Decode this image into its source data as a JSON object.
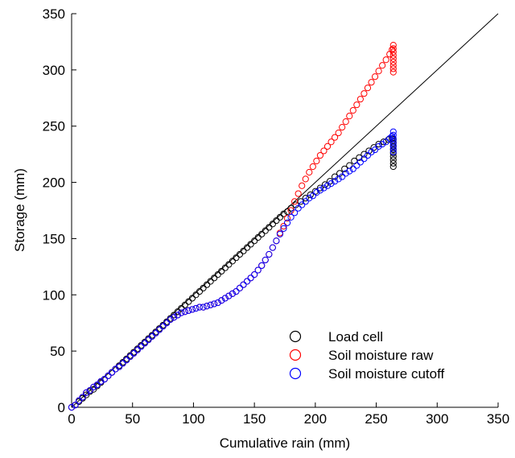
{
  "chart_data": {
    "type": "scatter",
    "xlabel": "Cumulative rain (mm)",
    "ylabel": "Storage (mm)",
    "xlim": [
      0,
      350
    ],
    "ylim": [
      0,
      350
    ],
    "xticks": [
      0,
      50,
      100,
      150,
      200,
      250,
      300,
      350
    ],
    "yticks": [
      0,
      50,
      100,
      150,
      200,
      250,
      300,
      350
    ],
    "grid": false,
    "legend_position": "bottom-right",
    "reference_line": {
      "x": [
        0,
        350
      ],
      "y": [
        0,
        350
      ],
      "color": "#000000"
    },
    "series": [
      {
        "name": "Load cell",
        "color": "#000000",
        "points": [
          [
            0,
            0
          ],
          [
            3,
            2
          ],
          [
            6,
            5
          ],
          [
            9,
            8
          ],
          [
            12,
            11
          ],
          [
            15,
            14
          ],
          [
            18,
            16
          ],
          [
            21,
            19
          ],
          [
            24,
            22
          ],
          [
            27,
            25
          ],
          [
            30,
            28
          ],
          [
            33,
            31
          ],
          [
            36,
            34
          ],
          [
            39,
            37
          ],
          [
            42,
            40
          ],
          [
            45,
            43
          ],
          [
            48,
            46
          ],
          [
            51,
            49
          ],
          [
            54,
            52
          ],
          [
            57,
            55
          ],
          [
            60,
            58
          ],
          [
            63,
            61
          ],
          [
            66,
            64
          ],
          [
            69,
            67
          ],
          [
            72,
            70
          ],
          [
            75,
            73
          ],
          [
            78,
            76
          ],
          [
            81,
            79
          ],
          [
            84,
            82
          ],
          [
            87,
            85
          ],
          [
            90,
            88
          ],
          [
            93,
            91
          ],
          [
            96,
            94
          ],
          [
            99,
            97
          ],
          [
            102,
            100
          ],
          [
            105,
            103
          ],
          [
            108,
            106
          ],
          [
            111,
            109
          ],
          [
            114,
            112
          ],
          [
            117,
            115
          ],
          [
            120,
            118
          ],
          [
            123,
            121
          ],
          [
            126,
            124
          ],
          [
            129,
            127
          ],
          [
            132,
            130
          ],
          [
            135,
            133
          ],
          [
            138,
            136
          ],
          [
            141,
            139
          ],
          [
            144,
            142
          ],
          [
            147,
            145
          ],
          [
            150,
            148
          ],
          [
            153,
            151
          ],
          [
            156,
            154
          ],
          [
            159,
            157
          ],
          [
            162,
            160
          ],
          [
            165,
            163
          ],
          [
            168,
            166
          ],
          [
            171,
            169
          ],
          [
            174,
            172
          ],
          [
            177,
            174
          ],
          [
            180,
            177
          ],
          [
            184,
            180
          ],
          [
            188,
            183
          ],
          [
            192,
            186
          ],
          [
            196,
            189
          ],
          [
            200,
            192
          ],
          [
            204,
            195
          ],
          [
            208,
            198
          ],
          [
            212,
            201
          ],
          [
            216,
            205
          ],
          [
            220,
            208
          ],
          [
            224,
            212
          ],
          [
            228,
            215
          ],
          [
            232,
            219
          ],
          [
            236,
            222
          ],
          [
            240,
            225
          ],
          [
            244,
            228
          ],
          [
            248,
            231
          ],
          [
            252,
            234
          ],
          [
            256,
            236
          ],
          [
            260,
            238
          ],
          [
            263,
            239
          ],
          [
            264,
            238
          ],
          [
            264,
            235
          ],
          [
            264,
            232
          ],
          [
            264,
            229
          ],
          [
            264,
            226
          ],
          [
            264,
            223
          ],
          [
            264,
            220
          ],
          [
            264,
            217
          ],
          [
            264,
            214
          ]
        ]
      },
      {
        "name": "Soil moisture raw",
        "color": "#ff0000",
        "points": [
          [
            0,
            0
          ],
          [
            3,
            2
          ],
          [
            6,
            6
          ],
          [
            9,
            9
          ],
          [
            12,
            13
          ],
          [
            15,
            15
          ],
          [
            18,
            18
          ],
          [
            21,
            20
          ],
          [
            24,
            23
          ],
          [
            27,
            25
          ],
          [
            30,
            28
          ],
          [
            33,
            31
          ],
          [
            36,
            34
          ],
          [
            39,
            36
          ],
          [
            42,
            39
          ],
          [
            45,
            42
          ],
          [
            48,
            45
          ],
          [
            51,
            48
          ],
          [
            54,
            51
          ],
          [
            57,
            54
          ],
          [
            60,
            57
          ],
          [
            63,
            60
          ],
          [
            66,
            63
          ],
          [
            69,
            66
          ],
          [
            72,
            69
          ],
          [
            75,
            72
          ],
          [
            78,
            75
          ],
          [
            81,
            78
          ],
          [
            84,
            80
          ],
          [
            87,
            82
          ],
          [
            90,
            84
          ],
          [
            93,
            85
          ],
          [
            96,
            86
          ],
          [
            99,
            87
          ],
          [
            102,
            88
          ],
          [
            105,
            89
          ],
          [
            108,
            89
          ],
          [
            111,
            90
          ],
          [
            114,
            91
          ],
          [
            117,
            92
          ],
          [
            120,
            93
          ],
          [
            123,
            95
          ],
          [
            126,
            97
          ],
          [
            129,
            99
          ],
          [
            132,
            101
          ],
          [
            135,
            103
          ],
          [
            138,
            106
          ],
          [
            141,
            109
          ],
          [
            144,
            112
          ],
          [
            147,
            115
          ],
          [
            150,
            118
          ],
          [
            153,
            122
          ],
          [
            156,
            126
          ],
          [
            159,
            131
          ],
          [
            162,
            136
          ],
          [
            165,
            142
          ],
          [
            168,
            148
          ],
          [
            171,
            155
          ],
          [
            174,
            161
          ],
          [
            177,
            168
          ],
          [
            180,
            175
          ],
          [
            183,
            183
          ],
          [
            186,
            190
          ],
          [
            189,
            197
          ],
          [
            192,
            203
          ],
          [
            195,
            209
          ],
          [
            198,
            214
          ],
          [
            201,
            219
          ],
          [
            204,
            224
          ],
          [
            207,
            228
          ],
          [
            210,
            232
          ],
          [
            213,
            236
          ],
          [
            216,
            240
          ],
          [
            219,
            244
          ],
          [
            222,
            249
          ],
          [
            225,
            254
          ],
          [
            228,
            259
          ],
          [
            231,
            264
          ],
          [
            234,
            269
          ],
          [
            237,
            274
          ],
          [
            240,
            279
          ],
          [
            243,
            284
          ],
          [
            246,
            289
          ],
          [
            249,
            294
          ],
          [
            252,
            299
          ],
          [
            255,
            304
          ],
          [
            258,
            309
          ],
          [
            261,
            314
          ],
          [
            263,
            318
          ],
          [
            264,
            322
          ],
          [
            264,
            319
          ],
          [
            264,
            316
          ],
          [
            264,
            313
          ],
          [
            264,
            310
          ],
          [
            264,
            307
          ],
          [
            264,
            304
          ],
          [
            264,
            301
          ],
          [
            264,
            298
          ]
        ]
      },
      {
        "name": "Soil moisture cutoff",
        "color": "#0000ff",
        "points": [
          [
            0,
            0
          ],
          [
            3,
            2
          ],
          [
            6,
            6
          ],
          [
            9,
            9
          ],
          [
            12,
            13
          ],
          [
            15,
            15
          ],
          [
            18,
            18
          ],
          [
            21,
            20
          ],
          [
            24,
            23
          ],
          [
            27,
            25
          ],
          [
            30,
            28
          ],
          [
            33,
            31
          ],
          [
            36,
            34
          ],
          [
            39,
            36
          ],
          [
            42,
            39
          ],
          [
            45,
            42
          ],
          [
            48,
            45
          ],
          [
            51,
            48
          ],
          [
            54,
            51
          ],
          [
            57,
            54
          ],
          [
            60,
            57
          ],
          [
            63,
            60
          ],
          [
            66,
            63
          ],
          [
            69,
            66
          ],
          [
            72,
            69
          ],
          [
            75,
            72
          ],
          [
            78,
            75
          ],
          [
            81,
            78
          ],
          [
            84,
            80
          ],
          [
            87,
            82
          ],
          [
            90,
            84
          ],
          [
            93,
            85
          ],
          [
            96,
            86
          ],
          [
            99,
            87
          ],
          [
            102,
            88
          ],
          [
            105,
            89
          ],
          [
            108,
            89
          ],
          [
            111,
            90
          ],
          [
            114,
            91
          ],
          [
            117,
            92
          ],
          [
            120,
            93
          ],
          [
            123,
            95
          ],
          [
            126,
            97
          ],
          [
            129,
            99
          ],
          [
            132,
            101
          ],
          [
            135,
            103
          ],
          [
            138,
            106
          ],
          [
            141,
            109
          ],
          [
            144,
            112
          ],
          [
            147,
            115
          ],
          [
            150,
            118
          ],
          [
            153,
            122
          ],
          [
            156,
            126
          ],
          [
            159,
            131
          ],
          [
            162,
            136
          ],
          [
            165,
            142
          ],
          [
            168,
            148
          ],
          [
            171,
            154
          ],
          [
            174,
            159
          ],
          [
            177,
            164
          ],
          [
            180,
            169
          ],
          [
            183,
            173
          ],
          [
            186,
            177
          ],
          [
            189,
            180
          ],
          [
            192,
            183
          ],
          [
            195,
            186
          ],
          [
            198,
            188
          ],
          [
            201,
            191
          ],
          [
            204,
            193
          ],
          [
            207,
            195
          ],
          [
            210,
            197
          ],
          [
            213,
            199
          ],
          [
            216,
            201
          ],
          [
            219,
            203
          ],
          [
            222,
            205
          ],
          [
            225,
            208
          ],
          [
            228,
            210
          ],
          [
            231,
            212
          ],
          [
            234,
            215
          ],
          [
            237,
            218
          ],
          [
            240,
            221
          ],
          [
            243,
            224
          ],
          [
            246,
            227
          ],
          [
            249,
            229
          ],
          [
            252,
            232
          ],
          [
            255,
            234
          ],
          [
            258,
            236
          ],
          [
            261,
            239
          ],
          [
            263,
            241
          ],
          [
            264,
            245
          ],
          [
            264,
            242
          ],
          [
            264,
            239
          ],
          [
            264,
            236
          ],
          [
            264,
            233
          ],
          [
            264,
            230
          ],
          [
            264,
            227
          ]
        ]
      }
    ]
  }
}
